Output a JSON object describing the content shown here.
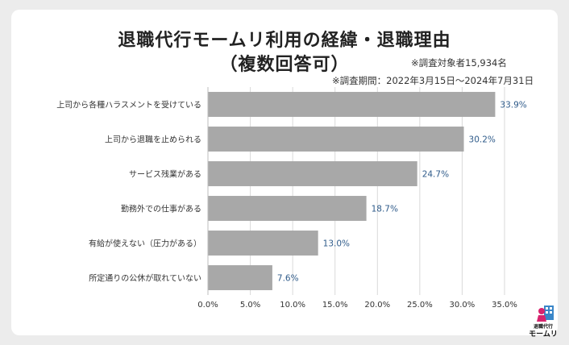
{
  "header": {
    "title_line1": "退職代行モームリ利用の経緯・退職理由",
    "title_line2": "（複数回答可）",
    "respondents": "※調査対象者15,934名",
    "period": "※調査期間：2022年3月15日〜2024年7月31日"
  },
  "brand": {
    "line1": "退職代行",
    "line2": "モームリ"
  },
  "colors": {
    "bar": "#a8a8a8",
    "value_label": "#2f5b8a",
    "grid": "#d9d9d9",
    "axis_text": "#333333"
  },
  "chart_data": {
    "type": "bar",
    "orientation": "horizontal",
    "categories": [
      "上司から各種ハラスメントを受けている",
      "上司から退職を止められる",
      "サービス残業がある",
      "勤務外での仕事がある",
      "有給が使えない（圧力がある）",
      "所定通りの公休が取れていない"
    ],
    "values": [
      33.9,
      30.2,
      24.7,
      18.7,
      13.0,
      7.6
    ],
    "value_labels": [
      "33.9%",
      "30.2%",
      "24.7%",
      "18.7%",
      "13.0%",
      "7.6%"
    ],
    "xlim": [
      0,
      35
    ],
    "xticks": [
      0,
      5,
      10,
      15,
      20,
      25,
      30,
      35
    ],
    "xtick_labels": [
      "0.0%",
      "5.0%",
      "10.0%",
      "15.0%",
      "20.0%",
      "25.0%",
      "30.0%",
      "35.0%"
    ],
    "grid": true,
    "legend": "none"
  }
}
